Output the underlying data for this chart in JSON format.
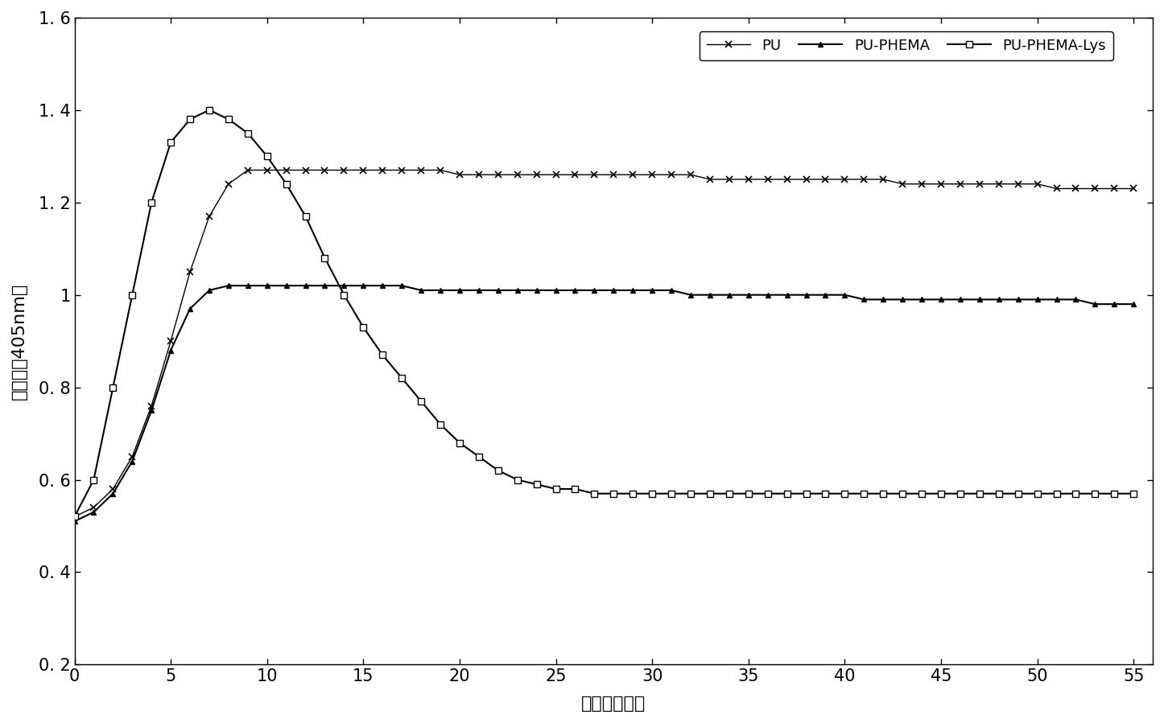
{
  "title": "",
  "xlabel": "时间（分钟）",
  "ylabel": "吸光值（405nm）",
  "xlim": [
    0,
    56
  ],
  "ylim": [
    0.2,
    1.6
  ],
  "xticks": [
    0,
    5,
    10,
    15,
    20,
    25,
    30,
    35,
    40,
    45,
    50,
    55
  ],
  "ytick_vals": [
    0.2,
    0.4,
    0.6,
    0.8,
    1.0,
    1.2,
    1.4,
    1.6
  ],
  "ytick_labels": [
    "0. 2",
    "0. 4",
    "0. 6",
    "0. 8",
    "1",
    "1. 2",
    "1. 4",
    "1. 6"
  ],
  "legend_labels": [
    "PU",
    "PU-PHEMA",
    "PU-PHEMA-Lys"
  ],
  "background_color": "#ffffff",
  "PU_x": [
    0,
    1,
    2,
    3,
    4,
    5,
    6,
    7,
    8,
    9,
    10,
    11,
    12,
    13,
    14,
    15,
    16,
    17,
    18,
    19,
    20,
    21,
    22,
    23,
    24,
    25,
    26,
    27,
    28,
    29,
    30,
    31,
    32,
    33,
    34,
    35,
    36,
    37,
    38,
    39,
    40,
    41,
    42,
    43,
    44,
    45,
    46,
    47,
    48,
    49,
    50,
    51,
    52,
    53,
    54,
    55
  ],
  "PU_y": [
    0.52,
    0.54,
    0.58,
    0.65,
    0.76,
    0.9,
    1.05,
    1.17,
    1.24,
    1.27,
    1.27,
    1.27,
    1.27,
    1.27,
    1.27,
    1.27,
    1.27,
    1.27,
    1.27,
    1.27,
    1.26,
    1.26,
    1.26,
    1.26,
    1.26,
    1.26,
    1.26,
    1.26,
    1.26,
    1.26,
    1.26,
    1.26,
    1.26,
    1.25,
    1.25,
    1.25,
    1.25,
    1.25,
    1.25,
    1.25,
    1.25,
    1.25,
    1.25,
    1.24,
    1.24,
    1.24,
    1.24,
    1.24,
    1.24,
    1.24,
    1.24,
    1.23,
    1.23,
    1.23,
    1.23,
    1.23
  ],
  "PHEMA_x": [
    0,
    1,
    2,
    3,
    4,
    5,
    6,
    7,
    8,
    9,
    10,
    11,
    12,
    13,
    14,
    15,
    16,
    17,
    18,
    19,
    20,
    21,
    22,
    23,
    24,
    25,
    26,
    27,
    28,
    29,
    30,
    31,
    32,
    33,
    34,
    35,
    36,
    37,
    38,
    39,
    40,
    41,
    42,
    43,
    44,
    45,
    46,
    47,
    48,
    49,
    50,
    51,
    52,
    53,
    54,
    55
  ],
  "PHEMA_y": [
    0.51,
    0.53,
    0.57,
    0.64,
    0.75,
    0.88,
    0.97,
    1.01,
    1.02,
    1.02,
    1.02,
    1.02,
    1.02,
    1.02,
    1.02,
    1.02,
    1.02,
    1.02,
    1.01,
    1.01,
    1.01,
    1.01,
    1.01,
    1.01,
    1.01,
    1.01,
    1.01,
    1.01,
    1.01,
    1.01,
    1.01,
    1.01,
    1.0,
    1.0,
    1.0,
    1.0,
    1.0,
    1.0,
    1.0,
    1.0,
    1.0,
    0.99,
    0.99,
    0.99,
    0.99,
    0.99,
    0.99,
    0.99,
    0.99,
    0.99,
    0.99,
    0.99,
    0.99,
    0.98,
    0.98,
    0.98
  ],
  "LYS_x": [
    0,
    1,
    2,
    3,
    4,
    5,
    6,
    7,
    8,
    9,
    10,
    11,
    12,
    13,
    14,
    15,
    16,
    17,
    18,
    19,
    20,
    21,
    22,
    23,
    24,
    25,
    26,
    27,
    28,
    29,
    30,
    31,
    32,
    33,
    34,
    35,
    36,
    37,
    38,
    39,
    40,
    41,
    42,
    43,
    44,
    45,
    46,
    47,
    48,
    49,
    50,
    51,
    52,
    53,
    54,
    55
  ],
  "LYS_y": [
    0.52,
    0.6,
    0.8,
    1.0,
    1.2,
    1.33,
    1.38,
    1.4,
    1.38,
    1.35,
    1.3,
    1.24,
    1.17,
    1.08,
    1.0,
    0.93,
    0.87,
    0.82,
    0.77,
    0.72,
    0.68,
    0.65,
    0.62,
    0.6,
    0.59,
    0.58,
    0.58,
    0.57,
    0.57,
    0.57,
    0.57,
    0.57,
    0.57,
    0.57,
    0.57,
    0.57,
    0.57,
    0.57,
    0.57,
    0.57,
    0.57,
    0.57,
    0.57,
    0.57,
    0.57,
    0.57,
    0.57,
    0.57,
    0.57,
    0.57,
    0.57,
    0.57,
    0.57,
    0.57,
    0.57,
    0.57
  ]
}
